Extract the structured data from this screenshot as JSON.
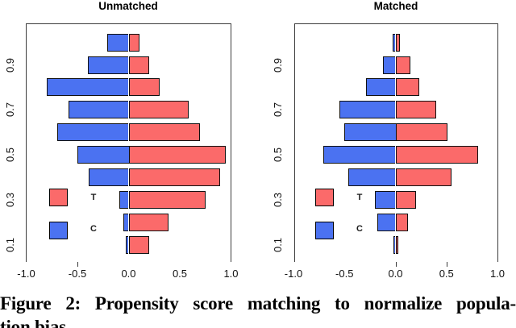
{
  "figure": {
    "caption_line1": "Figure 2: Propensity score matching to normalize popula-",
    "caption_line2": "tion bias"
  },
  "legend": {
    "t_label": "T",
    "c_label": "C"
  },
  "colors": {
    "treated_red": "#fb6a6a",
    "control_blue": "#4b72f1",
    "bar_border": "#111111",
    "axis_line": "#3c3c3c",
    "text": "#111111"
  },
  "chart_data": [
    {
      "type": "bar",
      "title": "Unmatched",
      "orientation": "horizontal-pyramid",
      "xlim": [
        -1.0,
        1.0
      ],
      "ylim": [
        0,
        1
      ],
      "x_tick_labels": [
        "-1.0",
        "-0.5",
        "0.0",
        "0.5",
        "1.0"
      ],
      "x_axis_tick_marks_shown": [
        -0.5
      ],
      "y_tick_labels": [
        "0.1",
        "0.3",
        "0.5",
        "0.7",
        "0.9"
      ],
      "bin_centers_bottom_to_top": [
        0.05,
        0.15,
        0.25,
        0.35,
        0.45,
        0.55,
        0.65,
        0.75,
        0.85,
        0.95
      ],
      "series": [
        {
          "name": "T",
          "side": "right",
          "values": [
            0.2,
            0.39,
            0.75,
            0.89,
            0.95,
            0.7,
            0.59,
            0.3,
            0.2,
            0.11
          ]
        },
        {
          "name": "C",
          "side": "left",
          "values": [
            -0.03,
            -0.05,
            -0.09,
            -0.39,
            -0.5,
            -0.7,
            -0.59,
            -0.8,
            -0.4,
            -0.21
          ]
        }
      ],
      "legend_position": "inside-left",
      "grid": false
    },
    {
      "type": "bar",
      "title": "Matched",
      "orientation": "horizontal-pyramid",
      "xlim": [
        -1.0,
        1.0
      ],
      "ylim": [
        0,
        1
      ],
      "x_tick_labels": [
        "-1.0",
        "-0.5",
        "0.0",
        "0.5",
        "1.0"
      ],
      "x_axis_tick_marks_shown": [
        0.0,
        0.5
      ],
      "y_tick_labels": [
        "0.1",
        "0.3",
        "0.5",
        "0.7",
        "0.9"
      ],
      "bin_centers_bottom_to_top": [
        0.05,
        0.15,
        0.25,
        0.35,
        0.45,
        0.55,
        0.65,
        0.75,
        0.85,
        0.95
      ],
      "series": [
        {
          "name": "T",
          "side": "right",
          "values": [
            0.03,
            0.12,
            0.2,
            0.55,
            0.81,
            0.51,
            0.4,
            0.23,
            0.15,
            0.04
          ]
        },
        {
          "name": "C",
          "side": "left",
          "values": [
            -0.02,
            -0.18,
            -0.2,
            -0.46,
            -0.71,
            -0.5,
            -0.55,
            -0.29,
            -0.12,
            -0.03
          ]
        }
      ],
      "legend_position": "inside-left",
      "grid": false
    }
  ]
}
